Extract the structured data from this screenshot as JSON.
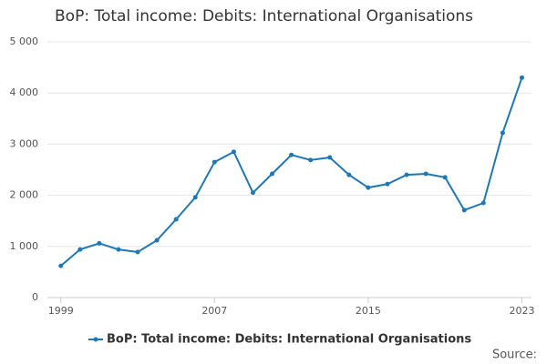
{
  "chart_data": {
    "type": "line",
    "title": "BoP: Total income: Debits: International Organisations",
    "x": [
      1999,
      2000,
      2001,
      2002,
      2003,
      2004,
      2005,
      2006,
      2007,
      2008,
      2009,
      2010,
      2011,
      2012,
      2013,
      2014,
      2015,
      2016,
      2017,
      2018,
      2019,
      2020,
      2021,
      2022,
      2023
    ],
    "series": [
      {
        "name": "BoP: Total income: Debits: International Organisations",
        "color": "#1f77b4",
        "values": [
          620,
          940,
          1060,
          940,
          890,
          1120,
          1530,
          1960,
          2650,
          2850,
          2050,
          2420,
          2790,
          2690,
          2740,
          2400,
          2150,
          2220,
          2400,
          2420,
          2350,
          1710,
          1850,
          3220,
          4300
        ]
      }
    ],
    "xlim": [
      1998.3,
      2023.5
    ],
    "xticks": [
      1999,
      2007,
      2015,
      2023
    ],
    "ylim": [
      0,
      5000
    ],
    "yticks": [
      0,
      {
        "value": 1000,
        "label": "1 000"
      },
      {
        "value": 2000,
        "label": "2 000"
      },
      {
        "value": 3000,
        "label": "3 000"
      },
      {
        "value": 4000,
        "label": "4 000"
      },
      {
        "value": 5000,
        "label": "5 000"
      }
    ],
    "grid": true,
    "legend": "bottom",
    "source_label": "Source:"
  }
}
